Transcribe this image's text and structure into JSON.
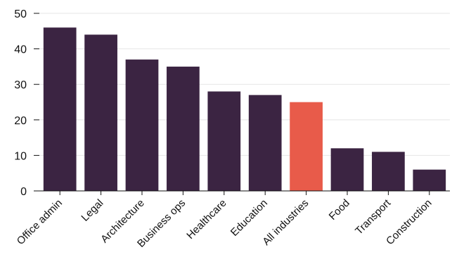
{
  "chart_data": {
    "type": "bar",
    "title": "",
    "xlabel": "",
    "ylabel": "",
    "ylim": [
      0,
      50
    ],
    "yticks": [
      0,
      10,
      20,
      30,
      40,
      50
    ],
    "grid": true,
    "categories": [
      "Office admin",
      "Legal",
      "Architecture",
      "Business ops",
      "Healthcare",
      "Education",
      "All industries",
      "Food",
      "Transport",
      "Construction"
    ],
    "values": [
      46,
      44,
      37,
      35,
      28,
      27,
      25,
      12,
      11,
      6
    ],
    "colors": {
      "bar": "#3b2442",
      "highlight": "#e85b4a",
      "grid": "#e6e6e6",
      "axis": "#111111"
    },
    "highlight_category": "All industries"
  }
}
